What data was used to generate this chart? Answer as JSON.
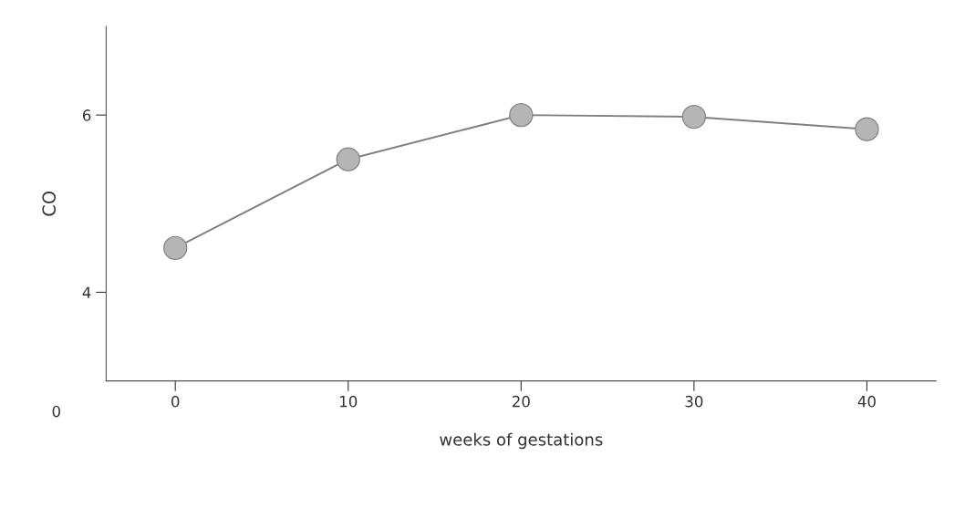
{
  "chart_data": {
    "type": "line",
    "xlabel": "weeks of gestations",
    "ylabel": "CO",
    "x": [
      0,
      10,
      20,
      30,
      40
    ],
    "series": [
      {
        "color": "#808080",
        "values": [
          4.5,
          5.5,
          6.0,
          5.98,
          5.84
        ]
      }
    ],
    "xlim": [
      -4,
      44
    ],
    "xticks": [
      0,
      10,
      20,
      30,
      40
    ],
    "ylim": [
      3,
      7
    ],
    "yticks": [
      4,
      6
    ],
    "annotations": [
      "0"
    ],
    "marker": "circle",
    "line_style": "solid",
    "grid": false,
    "legend": false
  }
}
